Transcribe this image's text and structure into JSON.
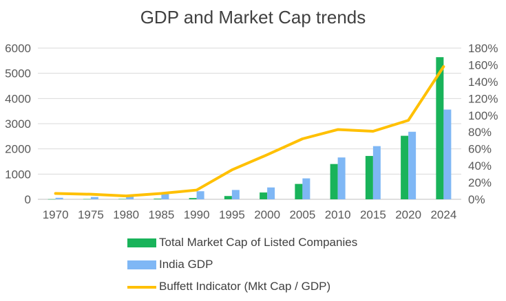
{
  "chart_data": {
    "type": "bar",
    "title": "GDP and Market Cap trends",
    "categories": [
      "1970",
      "1975",
      "1980",
      "1985",
      "1990",
      "1995",
      "2000",
      "2005",
      "2010",
      "2015",
      "2020",
      "2024"
    ],
    "series": [
      {
        "name": "Total Market Cap of Listed Companies",
        "type": "bar",
        "axis": "left",
        "color": "#19b35a",
        "values": [
          5,
          10,
          15,
          25,
          50,
          130,
          270,
          610,
          1400,
          1720,
          2520,
          5640
        ]
      },
      {
        "name": "India GDP",
        "type": "bar",
        "axis": "left",
        "color": "#7fb7f5",
        "values": [
          60,
          90,
          120,
          210,
          320,
          370,
          470,
          830,
          1660,
          2110,
          2680,
          3560
        ]
      },
      {
        "name": "Buffett Indicator (Mkt Cap / GDP)",
        "type": "line",
        "axis": "right",
        "color": "#ffc000",
        "values": [
          0.07,
          0.06,
          0.04,
          0.07,
          0.11,
          0.35,
          0.53,
          0.72,
          0.83,
          0.81,
          0.94,
          1.58
        ]
      }
    ],
    "yaxis_left": {
      "min": 0,
      "max": 6000,
      "ticks": [
        "0",
        "1000",
        "2000",
        "3000",
        "4000",
        "5000",
        "6000"
      ]
    },
    "yaxis_right": {
      "min": 0,
      "max": 1.8,
      "ticks": [
        "0%",
        "20%",
        "40%",
        "60%",
        "80%",
        "100%",
        "120%",
        "140%",
        "160%",
        "180%"
      ]
    },
    "grid": true,
    "legend_position": "bottom"
  }
}
